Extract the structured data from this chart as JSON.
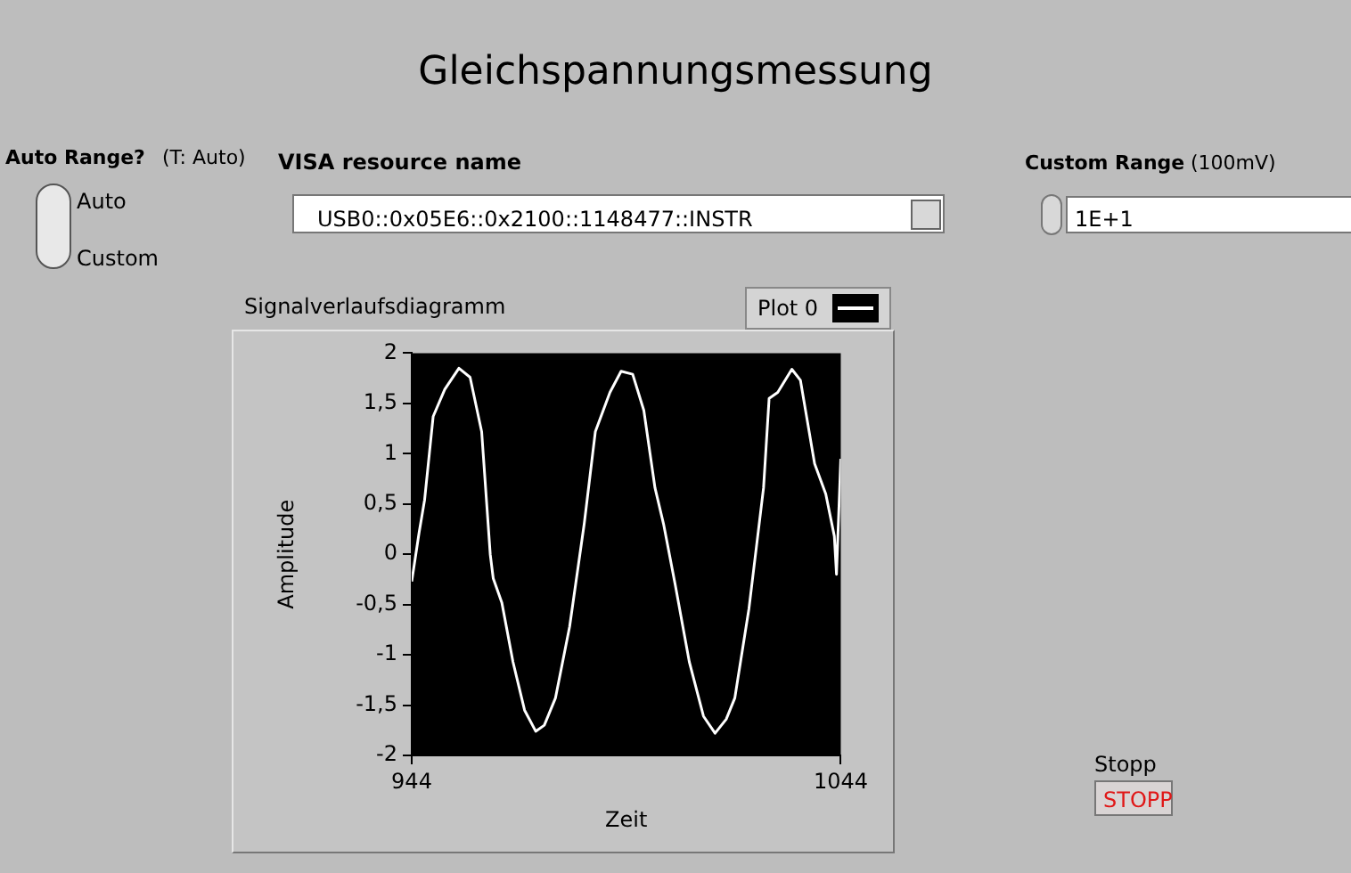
{
  "chart_data": {
    "type": "line",
    "title": "Gleichspannungsmessung",
    "subtitle": "Signalverlaufsdiagramm",
    "xlabel": "Zeit",
    "ylabel": "Amplitude",
    "annotations": [
      "Auto Range?",
      "(T: Auto)",
      "Auto",
      "Custom",
      "VISA resource name",
      "USB0::0x05E6::0x2100::1148477::INSTR",
      "Custom Range",
      "(100mV)",
      "1E+1",
      "Stopp",
      "STOPP"
    ],
    "series": [
      {
        "name": "Plot 0",
        "color": "#ffffff",
        "x": [
          944,
          945.7,
          947,
          949,
          951.7,
          955,
          957.6,
          960.3,
          962.3,
          963,
          965,
          967.6,
          970.3,
          972.9,
          974.9,
          977.5,
          980.8,
          984.2,
          986.8,
          990.2,
          992.8,
          995.5,
          998.1,
          1000.7,
          1002.7,
          1005.4,
          1008.7,
          1012,
          1014.7,
          1017.3,
          1019.3,
          1022.6,
          1026,
          1027.3,
          1029.3,
          1032.6,
          1034.6,
          1037.9,
          1040.5,
          1042.5,
          1043,
          1044
        ],
        "values": [
          -0.27,
          0.21,
          0.54,
          1.37,
          1.64,
          1.85,
          1.76,
          1.22,
          0,
          -0.24,
          -0.48,
          -1.07,
          -1.55,
          -1.76,
          -1.7,
          -1.43,
          -0.72,
          0.3,
          1.22,
          1.61,
          1.82,
          1.79,
          1.43,
          0.66,
          0.3,
          -0.3,
          -1.07,
          -1.61,
          -1.78,
          -1.64,
          -1.43,
          -0.54,
          0.66,
          1.55,
          1.61,
          1.84,
          1.73,
          0.9,
          0.6,
          0.18,
          -0.2,
          0.95
        ]
      }
    ],
    "xlim": [
      944,
      1044
    ],
    "xticks": [
      944,
      1044
    ],
    "ylim": [
      -2,
      2
    ],
    "yticks": [
      -2,
      {
        "value": -1.5,
        "label": "-1,5"
      },
      -1,
      {
        "value": -0.5,
        "label": "-0,5"
      },
      0,
      {
        "value": 0.5,
        "label": "0,5"
      },
      1,
      {
        "value": 1.5,
        "label": "1,5"
      },
      2
    ],
    "grid": false,
    "legend": "top right",
    "marker": "none",
    "line_style": "solid"
  }
}
